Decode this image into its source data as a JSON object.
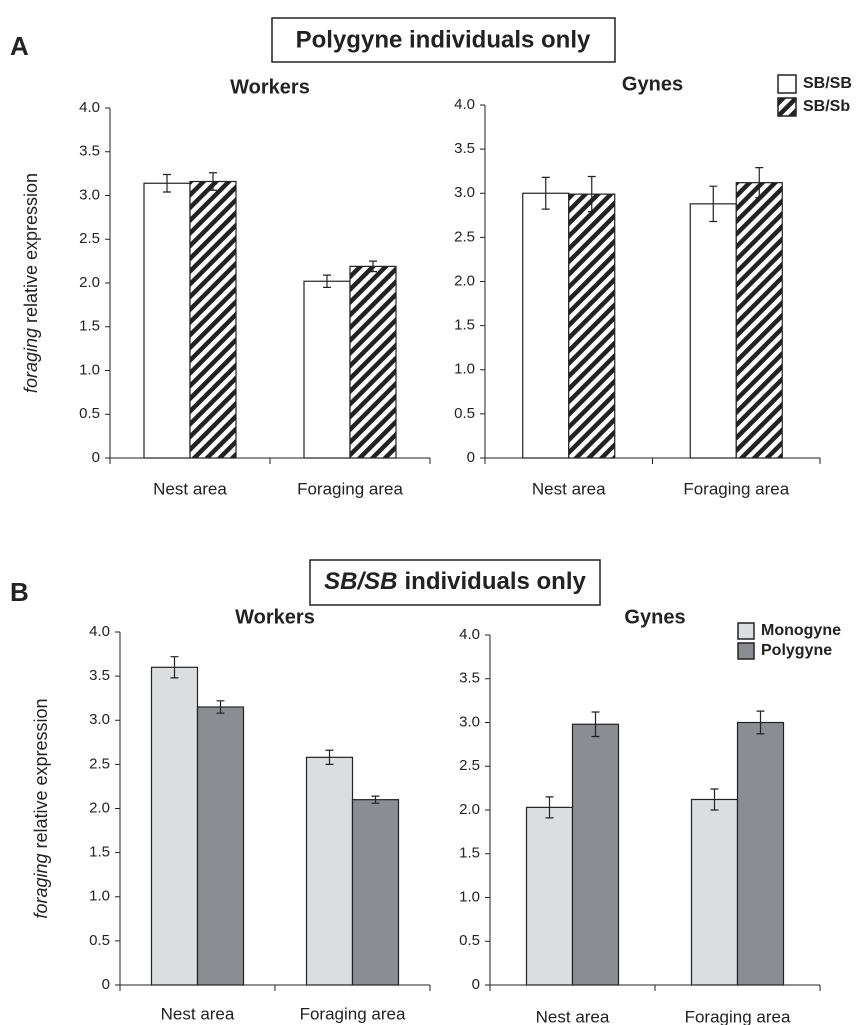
{
  "panels": [
    {
      "label": "A",
      "heading": "Polygyne individuals only"
    },
    {
      "label": "B",
      "heading_italic": "SB/SB",
      "heading": "individuals only"
    }
  ],
  "chart_data": [
    {
      "type": "bar",
      "title": "Workers",
      "y_label_italic": "foraging",
      "y_label": "relative expression",
      "categories": [
        "Nest area",
        "Foraging area"
      ],
      "series": [
        {
          "name": "SB/SB",
          "color": "#ffffff",
          "values": [
            3.14,
            2.02
          ],
          "errors": [
            0.1,
            0.07
          ]
        },
        {
          "name": "SB/Sb",
          "color": "#222222",
          "hatch": true,
          "values": [
            3.16,
            2.19
          ],
          "errors": [
            0.1,
            0.06
          ]
        }
      ],
      "ylim": [
        0,
        4
      ],
      "yticks": [
        0,
        0.5,
        {
          "value": 1,
          "label": "1.0"
        },
        1.5,
        {
          "value": 2,
          "label": "2.0"
        },
        2.5,
        {
          "value": 3,
          "label": "3.0"
        },
        3.5,
        {
          "value": 4,
          "label": "4.0"
        }
      ]
    },
    {
      "type": "bar",
      "title": "Gynes",
      "legend": "top-right",
      "categories": [
        "Nest area",
        "Foraging area"
      ],
      "series": [
        {
          "name": "SB/SB",
          "color": "#ffffff",
          "values": [
            3.0,
            2.88
          ],
          "errors": [
            0.18,
            0.2
          ]
        },
        {
          "name": "SB/Sb",
          "color": "#222222",
          "hatch": true,
          "values": [
            2.99,
            3.12
          ],
          "errors": [
            0.2,
            0.17
          ]
        }
      ],
      "ylim": [
        0,
        4
      ],
      "yticks": [
        0,
        0.5,
        {
          "value": 1,
          "label": "1.0"
        },
        1.5,
        {
          "value": 2,
          "label": "2.0"
        },
        2.5,
        {
          "value": 3,
          "label": "3.0"
        },
        3.5,
        {
          "value": 4,
          "label": "4.0"
        }
      ]
    },
    {
      "type": "bar",
      "title": "Workers",
      "y_label_italic": "foraging",
      "y_label": "relative expression",
      "categories": [
        "Nest area",
        "Foraging area"
      ],
      "series": [
        {
          "name": "Monogyne",
          "color": "#dcdddf",
          "values": [
            3.6,
            2.58
          ],
          "errors": [
            0.12,
            0.08
          ]
        },
        {
          "name": "Polygyne",
          "color": "#8c8d92",
          "values": [
            3.15,
            2.1
          ],
          "errors": [
            0.07,
            0.04
          ]
        }
      ],
      "ylim": [
        0,
        4
      ],
      "yticks": [
        0,
        0.5,
        {
          "value": 1,
          "label": "1.0"
        },
        1.5,
        {
          "value": 2,
          "label": "2.0"
        },
        2.5,
        {
          "value": 3,
          "label": "3.0"
        },
        3.5,
        {
          "value": 4,
          "label": "4.0"
        }
      ]
    },
    {
      "type": "bar",
      "title": "Gynes",
      "legend": "top-right",
      "categories": [
        "Nest area",
        "Foraging area"
      ],
      "series": [
        {
          "name": "Monogyne",
          "color": "#dcdddf",
          "values": [
            2.03,
            2.12
          ],
          "errors": [
            0.12,
            0.12
          ]
        },
        {
          "name": "Polygyne",
          "color": "#8c8d92",
          "values": [
            2.98,
            3.0
          ],
          "errors": [
            0.14,
            0.13
          ]
        }
      ],
      "ylim": [
        0,
        4
      ],
      "yticks": [
        0,
        0.5,
        {
          "value": 1,
          "label": "1.0"
        },
        1.5,
        {
          "value": 2,
          "label": "2.0"
        },
        2.5,
        {
          "value": 3,
          "label": "3.0"
        },
        3.5,
        {
          "value": 4,
          "label": "4.0"
        }
      ]
    }
  ]
}
